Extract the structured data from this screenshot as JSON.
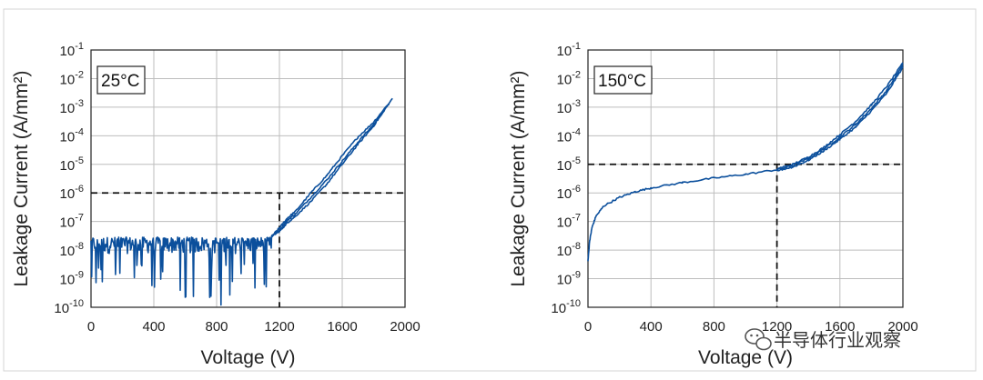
{
  "chart_data": [
    {
      "type": "line",
      "annotation": "25°C",
      "xlabel": "Voltage (V)",
      "ylabel": "Leakage Current (A/mm²)",
      "xlim": [
        0,
        2000
      ],
      "ylim": [
        1e-10,
        0.1
      ],
      "yscale": "log",
      "xticks": [
        0,
        400,
        800,
        1200,
        1600,
        2000
      ],
      "yticks": [
        1e-10,
        1e-09,
        1e-08,
        1e-07,
        1e-06,
        1e-05,
        0.0001,
        0.001,
        0.01,
        0.1
      ],
      "ytick_exponents": [
        "-10",
        "-9",
        "-8",
        "-7",
        "-6",
        "-5",
        "-4",
        "-3",
        "-2",
        "-1"
      ],
      "grid": true,
      "reference_lines": {
        "x": 1200,
        "y": 1e-06
      },
      "series_color": "#0b4f9c",
      "series": [
        {
          "noise_floor": 1.5e-08,
          "noise_until_x": 1150,
          "points": [
            [
              1150,
              3e-08
            ],
            [
              1200,
              6e-08
            ],
            [
              1250,
              1.3e-07
            ],
            [
              1300,
              2.2e-07
            ],
            [
              1400,
              1e-06
            ],
            [
              1500,
              4e-06
            ],
            [
              1600,
              2e-05
            ],
            [
              1700,
              9e-05
            ],
            [
              1800,
              0.0003
            ],
            [
              1920,
              0.002
            ]
          ]
        },
        {
          "points": [
            [
              1150,
              3e-08
            ],
            [
              1200,
              5e-08
            ],
            [
              1250,
              1.1e-07
            ],
            [
              1300,
              1.8e-07
            ],
            [
              1400,
              7e-07
            ],
            [
              1500,
              2.8e-06
            ],
            [
              1600,
              1.3e-05
            ],
            [
              1700,
              6e-05
            ],
            [
              1800,
              0.00025
            ],
            [
              1900,
              0.0013
            ]
          ]
        },
        {
          "points": [
            [
              1150,
              3e-08
            ],
            [
              1200,
              4.5e-08
            ],
            [
              1250,
              9e-08
            ],
            [
              1300,
              1.5e-07
            ],
            [
              1400,
              5e-07
            ],
            [
              1500,
              2e-06
            ],
            [
              1600,
              1e-05
            ],
            [
              1700,
              5e-05
            ],
            [
              1800,
              0.00022
            ],
            [
              1880,
              0.001
            ]
          ]
        }
      ]
    },
    {
      "type": "line",
      "annotation": "150°C",
      "xlabel": "Voltage (V)",
      "ylabel": "Leakage Current (A/mm²)",
      "xlim": [
        0,
        2000
      ],
      "ylim": [
        1e-10,
        0.1
      ],
      "yscale": "log",
      "xticks": [
        0,
        400,
        800,
        1200,
        1600,
        2000
      ],
      "yticks": [
        1e-10,
        1e-09,
        1e-08,
        1e-07,
        1e-06,
        1e-05,
        0.0001,
        0.001,
        0.01,
        0.1
      ],
      "ytick_exponents": [
        "-10",
        "-9",
        "-8",
        "-7",
        "-6",
        "-5",
        "-4",
        "-3",
        "-2",
        "-1"
      ],
      "grid": true,
      "reference_lines": {
        "x": 1200,
        "y": 1e-05
      },
      "series_color": "#0b4f9c",
      "series": [
        {
          "points": [
            [
              0,
              4e-09
            ],
            [
              10,
              2e-08
            ],
            [
              25,
              6e-08
            ],
            [
              50,
              1.5e-07
            ],
            [
              100,
              3.5e-07
            ],
            [
              200,
              7e-07
            ],
            [
              300,
              1.1e-06
            ],
            [
              400,
              1.5e-06
            ],
            [
              600,
              2.3e-06
            ],
            [
              800,
              3.3e-06
            ],
            [
              1000,
              4.5e-06
            ],
            [
              1200,
              6.5e-06
            ],
            [
              1300,
              9e-06
            ],
            [
              1400,
              1.6e-05
            ],
            [
              1500,
              3.5e-05
            ],
            [
              1600,
              9e-05
            ],
            [
              1700,
              0.00025
            ],
            [
              1800,
              0.0009
            ],
            [
              1900,
              0.004
            ],
            [
              2000,
              0.03
            ]
          ]
        },
        {
          "points": [
            [
              1200,
              7e-06
            ],
            [
              1300,
              1e-05
            ],
            [
              1400,
              1.8e-05
            ],
            [
              1500,
              4e-05
            ],
            [
              1600,
              0.00011
            ],
            [
              1700,
              0.00032
            ],
            [
              1800,
              0.0012
            ],
            [
              1900,
              0.0055
            ],
            [
              2000,
              0.035
            ]
          ]
        },
        {
          "points": [
            [
              1200,
              6e-06
            ],
            [
              1300,
              8e-06
            ],
            [
              1400,
              1.4e-05
            ],
            [
              1500,
              3e-05
            ],
            [
              1600,
              7.5e-05
            ],
            [
              1700,
              0.0002
            ],
            [
              1800,
              0.00075
            ],
            [
              1900,
              0.0032
            ],
            [
              2000,
              0.025
            ]
          ]
        }
      ]
    }
  ],
  "watermark": {
    "text": "半导体行业观察",
    "icon": "wechat-icon"
  }
}
